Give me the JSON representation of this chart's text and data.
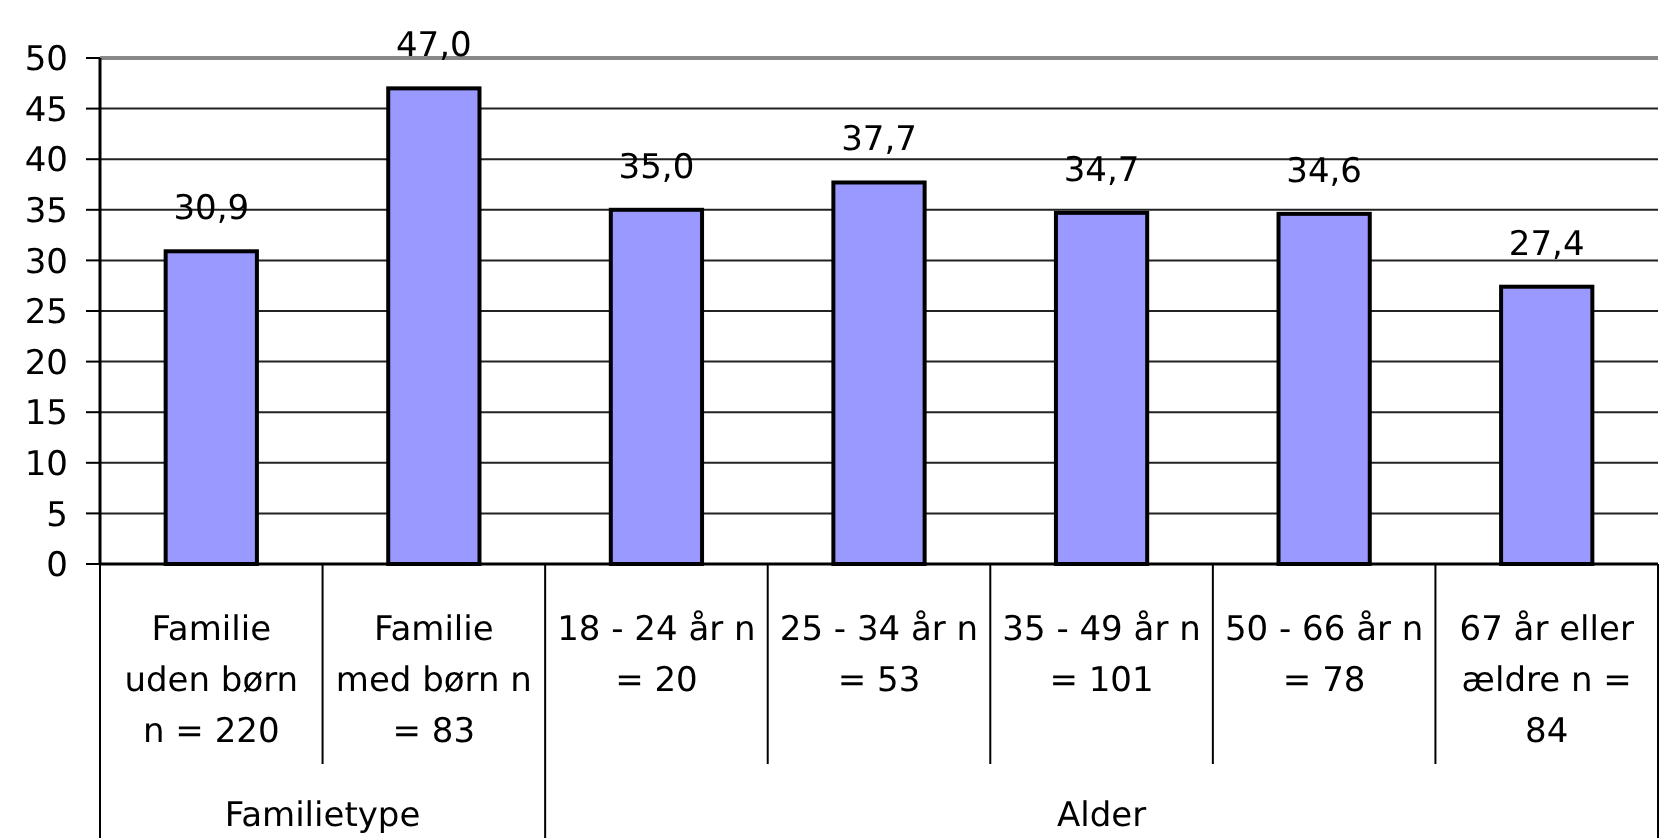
{
  "chart_data": {
    "type": "bar",
    "categories": [
      "Familie uden børn n = 220",
      "Familie med børn n = 83",
      "18 - 24 år n = 20",
      "25 - 34 år n = 53",
      "35 - 49 år n = 101",
      "50 - 66 år n = 78",
      "67 år eller ældre n = 84"
    ],
    "values": [
      30.9,
      47.0,
      35.0,
      37.7,
      34.7,
      34.6,
      27.4
    ],
    "value_labels": [
      "30,9",
      "47,0",
      "35,0",
      "37,7",
      "34,7",
      "34,6",
      "27,4"
    ],
    "color": "#9999ff",
    "ylim": [
      0,
      50
    ],
    "yticks": [
      0,
      5,
      10,
      15,
      20,
      25,
      30,
      35,
      40,
      45,
      50
    ],
    "grid": "y",
    "annotations": [
      "Familietype",
      "Alder"
    ]
  }
}
